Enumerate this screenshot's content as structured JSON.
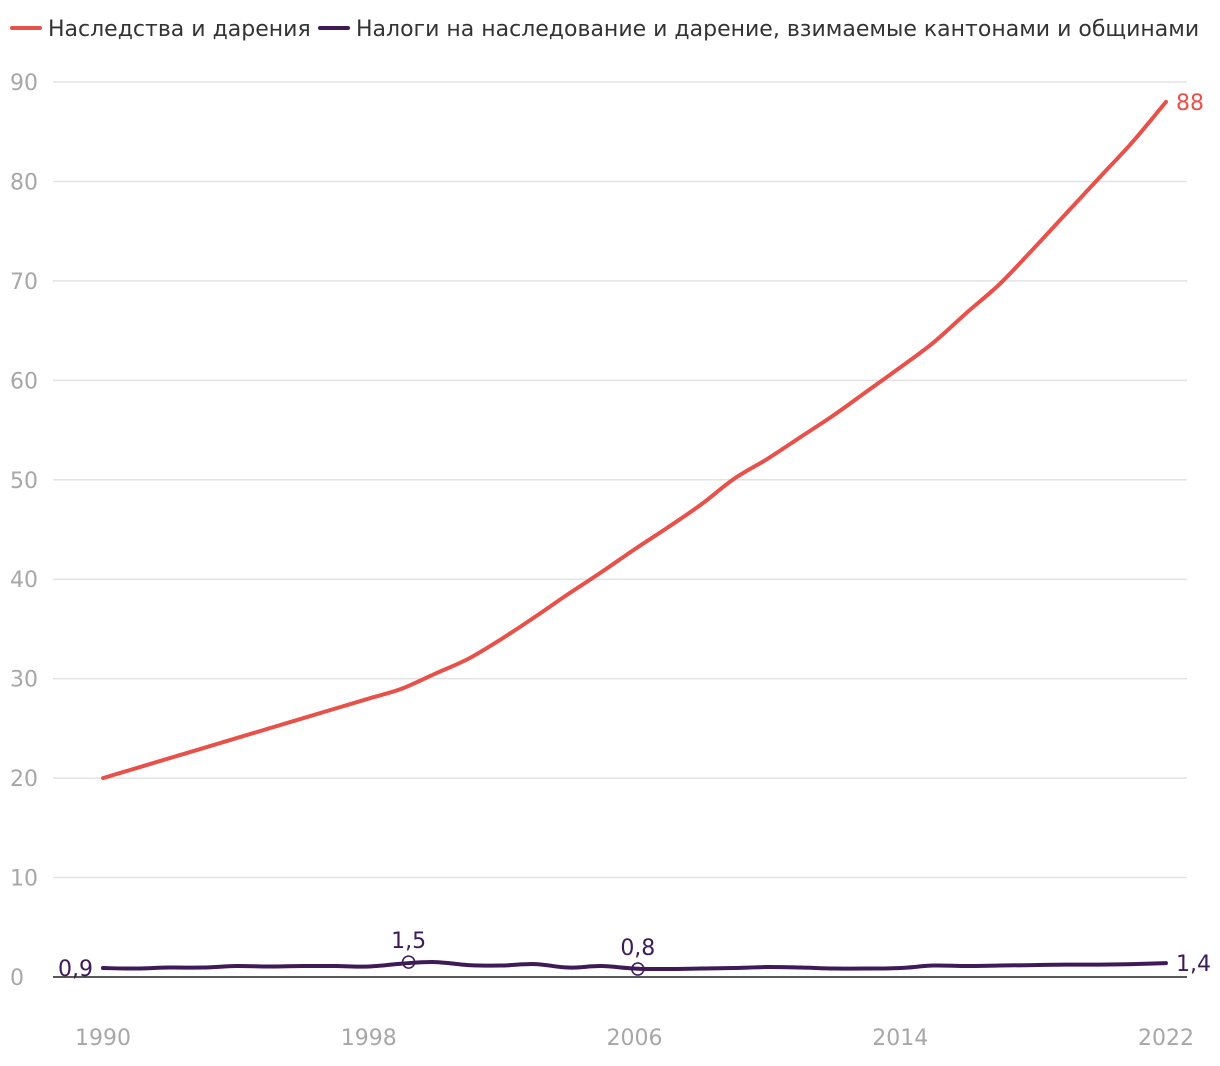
{
  "chart_data": {
    "type": "line",
    "title": "",
    "xlabel": "",
    "ylabel": "",
    "xlim": [
      1990,
      2022
    ],
    "ylim": [
      0,
      90
    ],
    "grid": true,
    "legend_position": "top-left",
    "y_ticks": [
      0,
      10,
      20,
      30,
      40,
      50,
      60,
      70,
      80,
      90
    ],
    "y_tick_labels": [
      "0",
      "10",
      "20",
      "30",
      "40",
      "50",
      "60",
      "70",
      "80",
      "90"
    ],
    "x_ticks": [
      1990,
      1998,
      2006,
      2014,
      2022
    ],
    "x_tick_labels": [
      "1990",
      "1998",
      "2006",
      "2014",
      "2022"
    ],
    "x": [
      1990,
      1991,
      1992,
      1993,
      1994,
      1995,
      1996,
      1997,
      1998,
      1999,
      2000,
      2001,
      2002,
      2003,
      2004,
      2005,
      2006,
      2007,
      2008,
      2009,
      2010,
      2011,
      2012,
      2013,
      2014,
      2015,
      2016,
      2017,
      2018,
      2019,
      2020,
      2021,
      2022
    ],
    "series": [
      {
        "name": "Наследства и дарения",
        "color": "#e8514a",
        "values": [
          20,
          21,
          22,
          23,
          24,
          25,
          26,
          27,
          28,
          29,
          30.5,
          32,
          34,
          36.2,
          38.5,
          40.7,
          43,
          45.2,
          47.5,
          50.1,
          52.1,
          54.3,
          56.5,
          58.9,
          61.3,
          63.8,
          66.8,
          69.7,
          73.2,
          76.8,
          80.4,
          84,
          88
        ]
      },
      {
        "name": "Налоги на наследование и дарение, взимаемые кантонами и общинами",
        "color": "#3e1a56",
        "values": [
          0.9,
          0.85,
          0.95,
          0.95,
          1.1,
          1.05,
          1.1,
          1.1,
          1.05,
          1.35,
          1.5,
          1.2,
          1.15,
          1.3,
          0.95,
          1.1,
          0.85,
          0.8,
          0.85,
          0.9,
          1.0,
          0.95,
          0.85,
          0.85,
          0.9,
          1.15,
          1.1,
          1.15,
          1.2,
          1.25,
          1.25,
          1.3,
          1.4
        ]
      }
    ],
    "annotations": [
      {
        "series": 0,
        "x": 2022,
        "text": "88"
      },
      {
        "series": 1,
        "x": 1990,
        "text": "0,9"
      },
      {
        "series": 1,
        "x": 1999.2,
        "y": 1.5,
        "text": "1,5",
        "marker": true
      },
      {
        "series": 1,
        "x": 2006.1,
        "y": 0.8,
        "text": "0,8",
        "marker": true
      },
      {
        "series": 1,
        "x": 2022,
        "text": "1,4"
      }
    ]
  }
}
